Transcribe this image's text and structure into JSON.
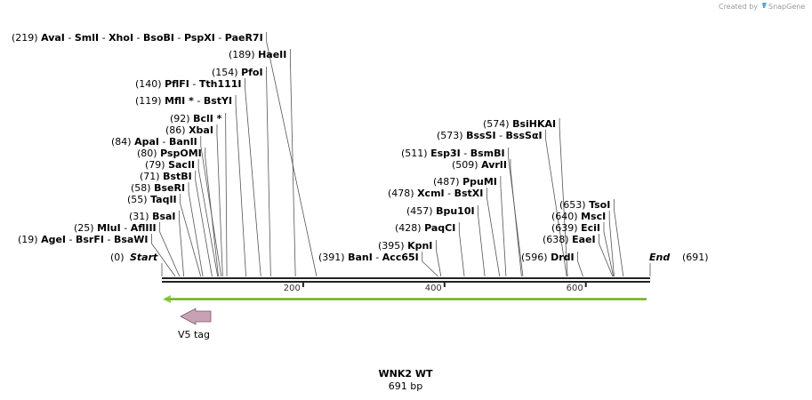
{
  "watermark": {
    "prefix": "Created by",
    "brand": "SnapGene"
  },
  "sequence": {
    "name": "WNK2 WT",
    "length_label": "691 bp",
    "length_bp": 691
  },
  "ends": {
    "start": {
      "pos": "(0)",
      "label": "Start"
    },
    "end": {
      "label": "End",
      "pos": "(691)"
    }
  },
  "ticks": [
    {
      "bp": 200,
      "label": "200"
    },
    {
      "bp": 400,
      "label": "400"
    },
    {
      "bp": 600,
      "label": "600"
    }
  ],
  "feature": {
    "label": "V5 tag",
    "arrow_color": "#c9a1b4",
    "orf_color": "#8fce45"
  },
  "sites": [
    {
      "pos": "(219)",
      "bp": 219,
      "names": [
        "AvaI",
        "SmlI",
        "XhoI",
        "BsoBI",
        "PspXI",
        "PaeR7I"
      ]
    },
    {
      "pos": "(189)",
      "bp": 189,
      "names": [
        "HaeII"
      ]
    },
    {
      "pos": "(154)",
      "bp": 154,
      "names": [
        "PfoI"
      ]
    },
    {
      "pos": "(140)",
      "bp": 140,
      "names": [
        "PflFI",
        "Tth111I"
      ]
    },
    {
      "pos": "(119)",
      "bp": 119,
      "names": [
        "MflI *",
        "BstYI"
      ]
    },
    {
      "pos": "(92)",
      "bp": 92,
      "names": [
        "BclI *"
      ]
    },
    {
      "pos": "(86)",
      "bp": 86,
      "names": [
        "XbaI"
      ]
    },
    {
      "pos": "(84)",
      "bp": 84,
      "names": [
        "ApaI",
        "BanII"
      ]
    },
    {
      "pos": "(80)",
      "bp": 80,
      "names": [
        "PspOMI"
      ]
    },
    {
      "pos": "(79)",
      "bp": 79,
      "names": [
        "SacII"
      ]
    },
    {
      "pos": "(71)",
      "bp": 71,
      "names": [
        "BstBI"
      ]
    },
    {
      "pos": "(58)",
      "bp": 58,
      "names": [
        "BseRI"
      ]
    },
    {
      "pos": "(55)",
      "bp": 55,
      "names": [
        "TaqII"
      ]
    },
    {
      "pos": "(31)",
      "bp": 31,
      "names": [
        "BsaI"
      ]
    },
    {
      "pos": "(25)",
      "bp": 25,
      "names": [
        "MluI",
        "AflIII"
      ]
    },
    {
      "pos": "(19)",
      "bp": 19,
      "names": [
        "AgeI",
        "BsrFI",
        "BsaWI"
      ]
    },
    {
      "pos": "(574)",
      "bp": 574,
      "names": [
        "BsiHKAI"
      ]
    },
    {
      "pos": "(573)",
      "bp": 573,
      "names": [
        "BssSI",
        "BssSαI"
      ]
    },
    {
      "pos": "(511)",
      "bp": 511,
      "names": [
        "Esp3I",
        "BsmBI"
      ]
    },
    {
      "pos": "(509)",
      "bp": 509,
      "names": [
        "AvrII"
      ]
    },
    {
      "pos": "(487)",
      "bp": 487,
      "names": [
        "PpuMI"
      ]
    },
    {
      "pos": "(478)",
      "bp": 478,
      "names": [
        "XcmI",
        "BstXI"
      ]
    },
    {
      "pos": "(457)",
      "bp": 457,
      "names": [
        "Bpu10I"
      ]
    },
    {
      "pos": "(428)",
      "bp": 428,
      "names": [
        "PaqCI"
      ]
    },
    {
      "pos": "(395)",
      "bp": 395,
      "names": [
        "KpnI"
      ]
    },
    {
      "pos": "(391)",
      "bp": 391,
      "names": [
        "BanI",
        "Acc65I"
      ]
    },
    {
      "pos": "(653)",
      "bp": 653,
      "names": [
        "TsoI"
      ]
    },
    {
      "pos": "(640)",
      "bp": 640,
      "names": [
        "MscI"
      ]
    },
    {
      "pos": "(639)",
      "bp": 639,
      "names": [
        "EciI"
      ]
    },
    {
      "pos": "(638)",
      "bp": 638,
      "names": [
        "EaeI"
      ]
    },
    {
      "pos": "(596)",
      "bp": 596,
      "names": [
        "DrdI"
      ]
    }
  ]
}
